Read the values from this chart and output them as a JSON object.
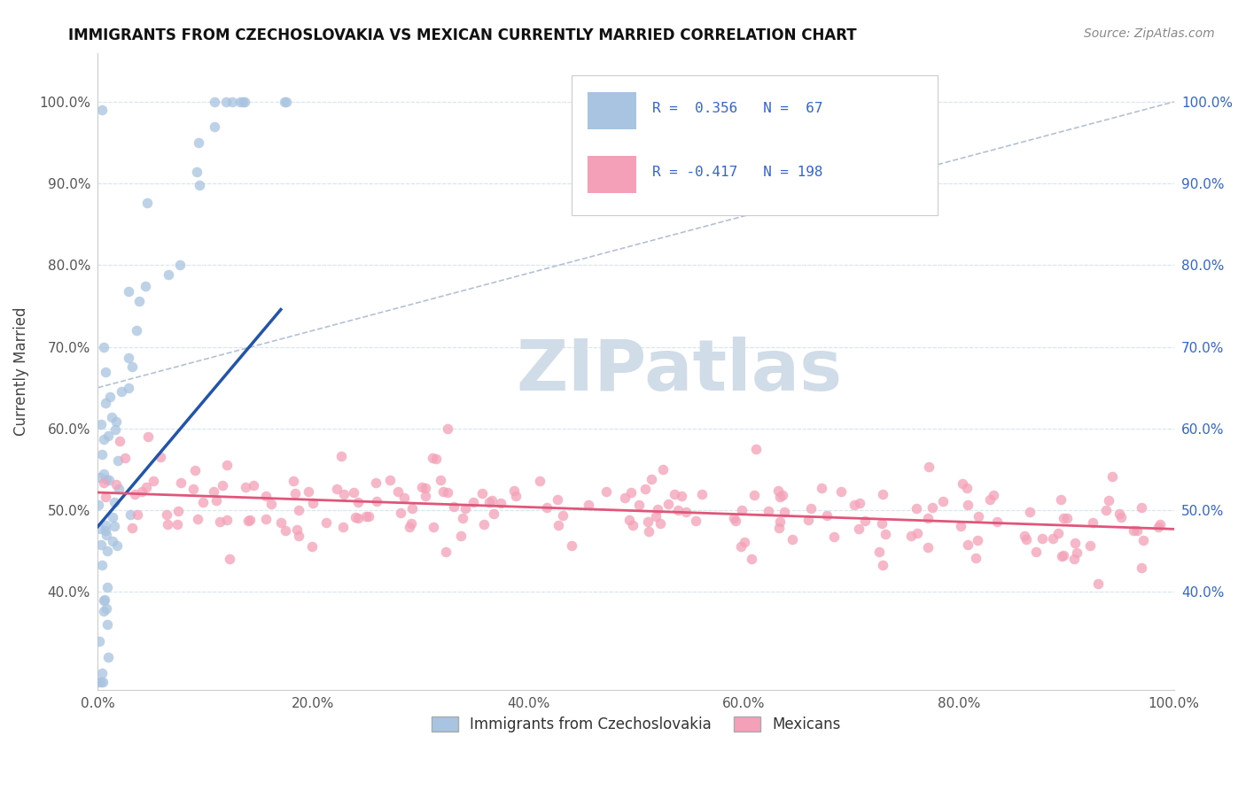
{
  "title": "IMMIGRANTS FROM CZECHOSLOVAKIA VS MEXICAN CURRENTLY MARRIED CORRELATION CHART",
  "source": "Source: ZipAtlas.com",
  "ylabel": "Currently Married",
  "xlim": [
    0.0,
    1.0
  ],
  "ylim": [
    0.28,
    1.06
  ],
  "x_ticks": [
    0.0,
    0.2,
    0.4,
    0.6,
    0.8,
    1.0
  ],
  "x_tick_labels": [
    "0.0%",
    "20.0%",
    "40.0%",
    "60.0%",
    "80.0%",
    "100.0%"
  ],
  "y_ticks": [
    0.4,
    0.5,
    0.6,
    0.7,
    0.8,
    0.9,
    1.0
  ],
  "y_tick_labels": [
    "40.0%",
    "50.0%",
    "60.0%",
    "70.0%",
    "80.0%",
    "90.0%",
    "100.0%"
  ],
  "blue_color": "#a8c4e0",
  "pink_color": "#f4a0b8",
  "blue_line_color": "#2255aa",
  "pink_line_color": "#e0557a",
  "dash_color": "#aabbd0",
  "watermark_text": "ZIPatlas",
  "watermark_color": "#d0dde8",
  "title_fontsize": 12,
  "tick_fontsize": 11,
  "right_tick_color": "#3366cc",
  "legend_r1": "R =  0.356",
  "legend_n1": "N =  67",
  "legend_r2": "R = -0.417",
  "legend_n2": "N = 198",
  "legend_text_color": "#3366cc",
  "bottom_legend_label1": "Immigrants from Czechoslovakia",
  "bottom_legend_label2": "Mexicans"
}
